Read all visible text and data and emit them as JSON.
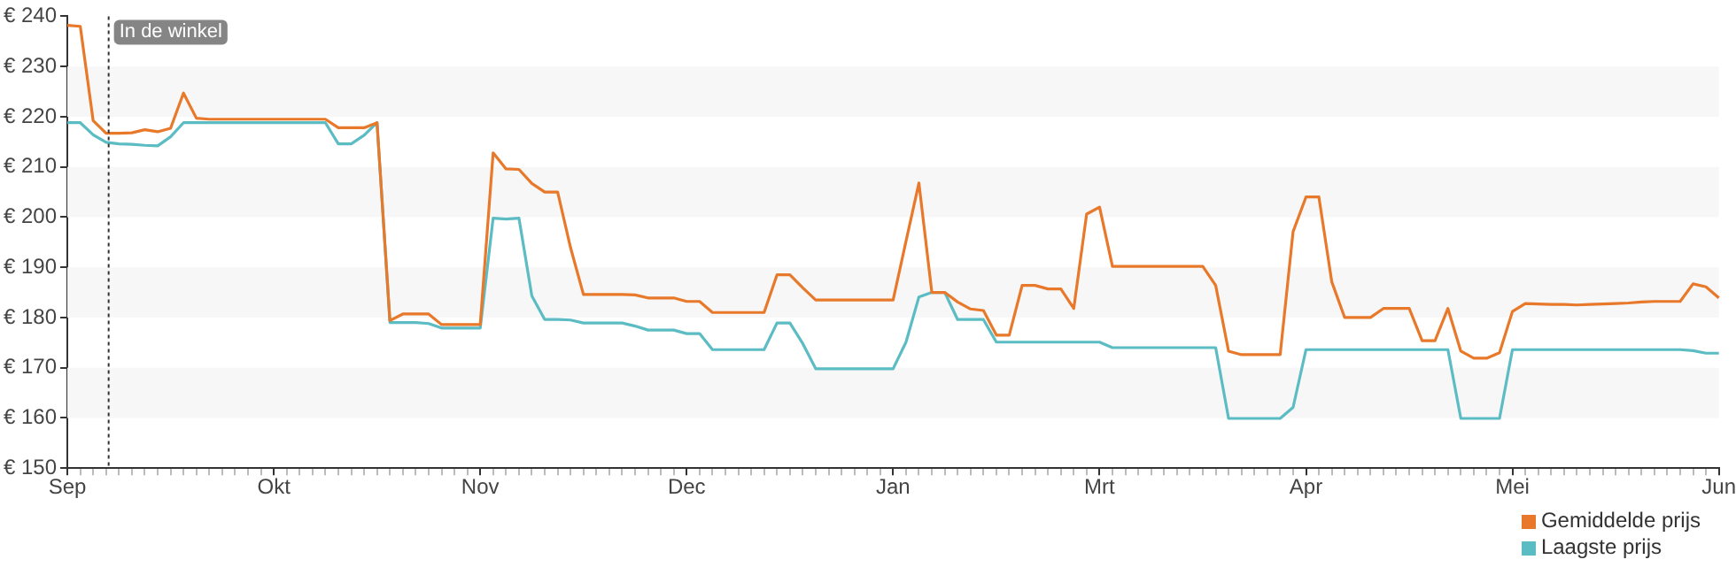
{
  "chart_data": {
    "type": "line",
    "categories": [
      "Sep",
      null,
      null,
      null,
      null,
      null,
      null,
      null,
      null,
      null,
      null,
      null,
      null,
      null,
      null,
      null,
      "Okt",
      null,
      null,
      null,
      null,
      null,
      null,
      null,
      null,
      null,
      null,
      null,
      null,
      null,
      null,
      null,
      "Nov",
      null,
      null,
      null,
      null,
      null,
      null,
      null,
      null,
      null,
      null,
      null,
      null,
      null,
      null,
      null,
      "Dec",
      null,
      null,
      null,
      null,
      null,
      null,
      null,
      null,
      null,
      null,
      null,
      null,
      null,
      null,
      null,
      "Jan",
      null,
      null,
      null,
      null,
      null,
      null,
      null,
      null,
      null,
      null,
      null,
      null,
      null,
      null,
      null,
      "Mrt",
      null,
      null,
      null,
      null,
      null,
      null,
      null,
      null,
      null,
      null,
      null,
      null,
      null,
      null,
      null,
      "Apr",
      null,
      null,
      null,
      null,
      null,
      null,
      null,
      null,
      null,
      null,
      null,
      null,
      null,
      null,
      null,
      "Mei",
      null,
      null,
      null,
      null,
      null,
      null,
      null,
      null,
      null,
      null,
      null,
      null,
      null,
      null,
      null,
      "Jun"
    ],
    "series": [
      {
        "name": "Gemiddelde prijs",
        "color": "#e8782a",
        "values": [
          238.2,
          238,
          219.2,
          216.7,
          216.7,
          216.8,
          217.4,
          217,
          217.7,
          224.7,
          219.7,
          219.5,
          219.5,
          219.5,
          219.5,
          219.5,
          219.5,
          219.5,
          219.5,
          219.5,
          219.5,
          217.8,
          217.8,
          217.8,
          218.8,
          179.4,
          180.7,
          180.7,
          180.7,
          178.6,
          178.6,
          178.6,
          178.6,
          212.8,
          209.6,
          209.5,
          206.7,
          205,
          205,
          193.9,
          184.6,
          184.6,
          184.6,
          184.6,
          184.5,
          183.9,
          183.9,
          183.9,
          183.2,
          183.2,
          181,
          181,
          181,
          181,
          181,
          188.5,
          188.5,
          185.9,
          183.5,
          183.5,
          183.5,
          183.5,
          183.5,
          183.5,
          183.5,
          195.2,
          206.8,
          185,
          185,
          183.1,
          181.7,
          181.4,
          176.5,
          176.5,
          186.4,
          186.4,
          185.7,
          185.7,
          181.8,
          200.6,
          202,
          190.2,
          190.2,
          190.2,
          190.2,
          190.2,
          190.2,
          190.2,
          190.2,
          186.4,
          173.3,
          172.6,
          172.6,
          172.6,
          172.6,
          197.1,
          204,
          204,
          187.1,
          180,
          180,
          180,
          181.8,
          181.8,
          181.8,
          175.4,
          175.4,
          181.8,
          173.3,
          171.9,
          171.9,
          173,
          181.2,
          182.8,
          182.7,
          182.6,
          182.6,
          182.5,
          182.6,
          182.7,
          182.8,
          182.9,
          183.1,
          183.2,
          183.2,
          183.2,
          186.7,
          186.1,
          183.9
        ]
      },
      {
        "name": "Laagste prijs",
        "color": "#5bbcc4",
        "values": [
          218.8,
          218.8,
          216.4,
          214.9,
          214.6,
          214.5,
          214.3,
          214.2,
          216,
          218.8,
          218.8,
          218.8,
          218.8,
          218.8,
          218.8,
          218.8,
          218.8,
          218.8,
          218.8,
          218.8,
          218.8,
          214.6,
          214.6,
          216.3,
          218.8,
          179,
          179,
          179,
          178.8,
          177.9,
          177.9,
          177.9,
          177.9,
          199.8,
          199.6,
          199.8,
          184.3,
          179.6,
          179.6,
          179.5,
          178.9,
          178.9,
          178.9,
          178.9,
          178.3,
          177.5,
          177.5,
          177.5,
          176.8,
          176.8,
          173.6,
          173.6,
          173.6,
          173.6,
          173.6,
          178.9,
          178.9,
          174.8,
          169.8,
          169.8,
          169.8,
          169.8,
          169.8,
          169.8,
          169.8,
          175.1,
          184.1,
          185,
          185,
          179.6,
          179.6,
          179.6,
          175.1,
          175.1,
          175.1,
          175.1,
          175.1,
          175.1,
          175.1,
          175.1,
          175.1,
          174,
          174,
          174,
          174,
          174,
          174,
          174,
          174,
          174,
          159.9,
          159.9,
          159.9,
          159.9,
          159.9,
          162.1,
          173.6,
          173.6,
          173.6,
          173.6,
          173.6,
          173.6,
          173.6,
          173.6,
          173.6,
          173.6,
          173.6,
          173.6,
          159.9,
          159.9,
          159.9,
          159.9,
          173.6,
          173.6,
          173.6,
          173.6,
          173.6,
          173.6,
          173.6,
          173.6,
          173.6,
          173.6,
          173.6,
          173.6,
          173.6,
          173.6,
          173.4,
          172.9,
          172.9
        ]
      }
    ],
    "ylim": [
      150,
      240
    ],
    "yticks": [
      {
        "value": 150,
        "label": "€ 150"
      },
      {
        "value": 160,
        "label": "€ 160"
      },
      {
        "value": 170,
        "label": "€ 170"
      },
      {
        "value": 180,
        "label": "€ 180"
      },
      {
        "value": 190,
        "label": "€ 190"
      },
      {
        "value": 200,
        "label": "€ 200"
      },
      {
        "value": 210,
        "label": "€ 210"
      },
      {
        "value": 220,
        "label": "€ 220"
      },
      {
        "value": 230,
        "label": "€ 230"
      },
      {
        "value": 240,
        "label": "€ 240"
      }
    ],
    "annotations": [
      "In de winkel"
    ],
    "legend": "bottom right",
    "marker": "none",
    "line_style": "solid"
  }
}
